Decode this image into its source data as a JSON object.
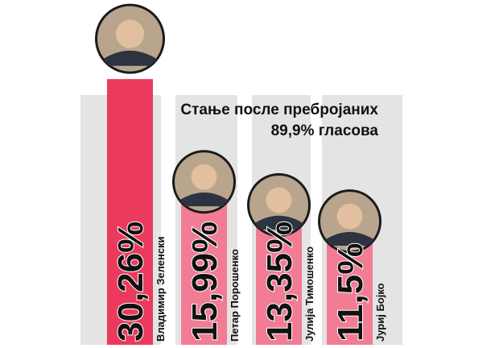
{
  "chart_data": {
    "type": "bar",
    "title": [
      "Стање после пребројаних",
      "89,9% гласова"
    ],
    "categories": [
      "Владимир Зеленски",
      "Петар Порошенко",
      "Јулија Тимошенко",
      "Јуриј Бојко"
    ],
    "values": [
      30.26,
      15.99,
      13.35,
      11.5
    ],
    "value_labels": [
      "30,26%",
      "15,99%",
      "13,35%",
      "11,5%"
    ],
    "colors": [
      "#ec3a5c",
      "#f27c93",
      "#f27c93",
      "#f27c93"
    ]
  }
}
